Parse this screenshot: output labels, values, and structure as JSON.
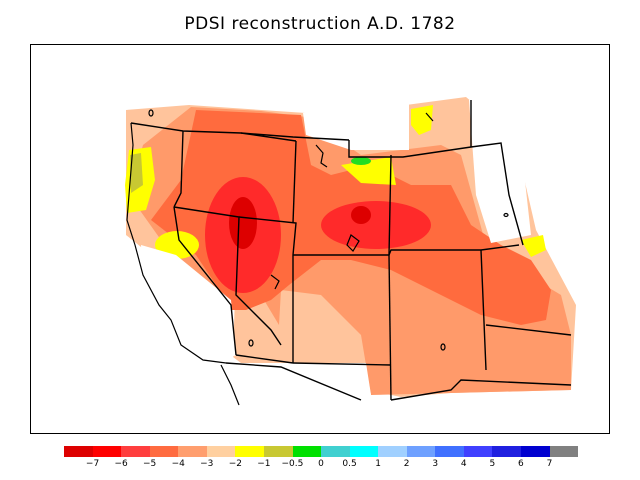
{
  "title": "PDSI reconstruction A.D. 1782",
  "legend": {
    "colors": [
      "#dd0000",
      "#ff0000",
      "#ff3e3e",
      "#ff6b40",
      "#ff9e6e",
      "#ffd0a0",
      "#ffff00",
      "#c8c832",
      "#00e000",
      "#40d0d0",
      "#00ffff",
      "#a0d0ff",
      "#6ea0ff",
      "#4070ff",
      "#4040ff",
      "#2020e0",
      "#0000d0",
      "#808080"
    ],
    "labels": [
      "−7",
      "−6",
      "−5",
      "−4",
      "−3",
      "−2",
      "−1",
      "−0.5",
      "0",
      "0.5",
      "1",
      "2",
      "3",
      "4",
      "5",
      "6",
      "7"
    ]
  },
  "map": {
    "region": "Western United States",
    "colors": {
      "light": "#ffc49c",
      "mid": "#ff9a6a",
      "orange": "#ff6b3e",
      "red": "#ff2a2a",
      "yellow": "#ffff00",
      "olive": "#c8c832",
      "green": "#22dd22"
    }
  }
}
